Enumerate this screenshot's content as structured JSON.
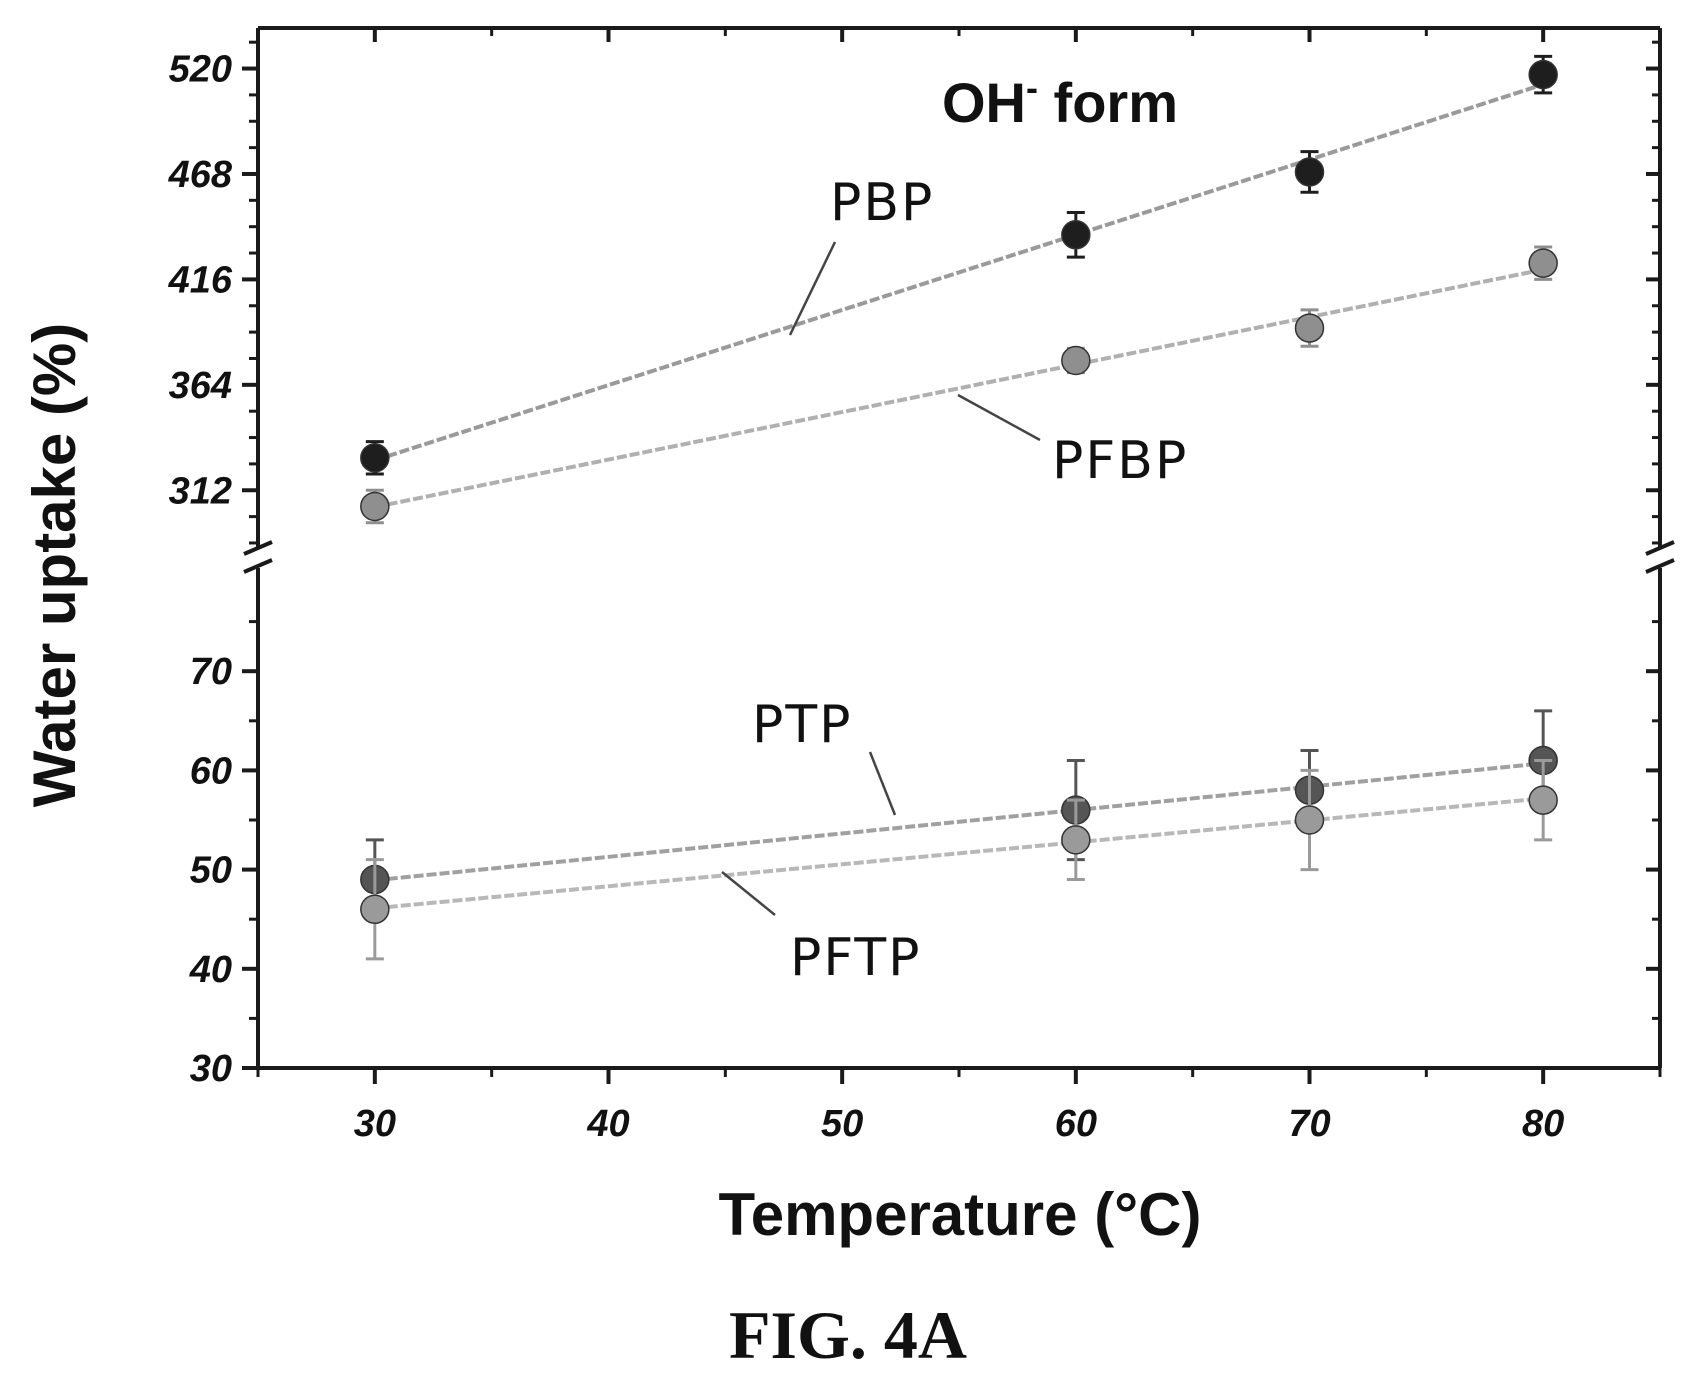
{
  "chart_data": {
    "type": "scatter",
    "xlabel": "Temperature (°C)",
    "ylabel": "Water uptake (%)",
    "annotation": {
      "main": "OH",
      "sup": "-",
      "rest": " form"
    },
    "caption": "FIG. 4A",
    "x_ticks": [
      "30",
      "40",
      "50",
      "60",
      "70",
      "80"
    ],
    "xlim": [
      25,
      85
    ],
    "upper_panel": {
      "ylim": [
        285,
        540
      ],
      "y_ticks": [
        "312",
        "364",
        "416",
        "468",
        "520"
      ]
    },
    "lower_panel": {
      "ylim": [
        30,
        80
      ],
      "y_ticks": [
        "30",
        "40",
        "50",
        "60",
        "70"
      ]
    },
    "axis_break": true,
    "grid": false,
    "series": [
      {
        "name": "PBP",
        "panel": "upper",
        "color": "#1e1e1e",
        "line_color": "#9a9a9a",
        "x": [
          30,
          60,
          70,
          80
        ],
        "y": [
          328,
          438,
          469,
          517
        ],
        "err": [
          8,
          11,
          10,
          9
        ]
      },
      {
        "name": "PFBP",
        "panel": "upper",
        "color": "#8f8f8f",
        "line_color": "#b0b0b0",
        "x": [
          30,
          60,
          70,
          80
        ],
        "y": [
          304,
          376,
          392,
          424
        ],
        "err": [
          8,
          6,
          9,
          8
        ]
      },
      {
        "name": "PTP",
        "panel": "lower",
        "color": "#555555",
        "line_color": "#a0a0a0",
        "x": [
          30,
          60,
          70,
          80
        ],
        "y": [
          49,
          56,
          58,
          61
        ],
        "err": [
          4,
          5,
          4,
          5
        ]
      },
      {
        "name": "PFTP",
        "panel": "lower",
        "color": "#9a9a9a",
        "line_color": "#b8b8b8",
        "x": [
          30,
          60,
          70,
          80
        ],
        "y": [
          46,
          53,
          55,
          57
        ],
        "err": [
          5,
          4,
          5,
          4
        ]
      }
    ]
  }
}
